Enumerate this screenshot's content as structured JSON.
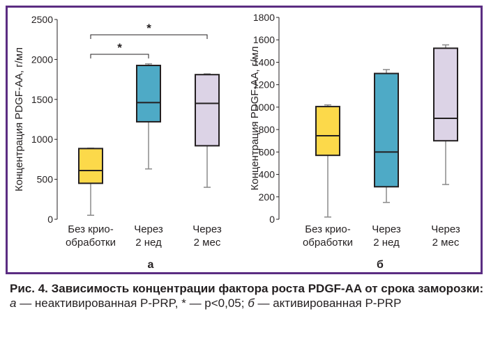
{
  "chart_data": [
    {
      "type": "boxplot",
      "panel_label": "а",
      "ylabel": "Концентрация PDGF-AA, г/мл",
      "ylim": [
        0,
        2500
      ],
      "yticks": [
        0,
        500,
        1000,
        1500,
        2000,
        2500
      ],
      "categories": [
        {
          "lines": [
            "Без крио-",
            "обработки"
          ]
        },
        {
          "lines": [
            "Через",
            "2 нед"
          ]
        },
        {
          "lines": [
            "Через",
            "2 мес"
          ]
        }
      ],
      "boxes": [
        {
          "min": 50,
          "q1": 450,
          "median": 610,
          "q3": 885,
          "max": 890,
          "color": "#fcd94a"
        },
        {
          "min": 630,
          "q1": 1220,
          "median": 1460,
          "q3": 1925,
          "max": 1945,
          "color": "#4eaac6"
        },
        {
          "min": 400,
          "q1": 920,
          "median": 1450,
          "q3": 1810,
          "max": 1820,
          "color": "#dcd3e6"
        }
      ],
      "significance": [
        {
          "from": 0,
          "to": 1,
          "label": "*"
        },
        {
          "from": 0,
          "to": 2,
          "label": "*"
        }
      ]
    },
    {
      "type": "boxplot",
      "panel_label": "б",
      "ylabel": "Концентрация PDGF-AA, г/мл",
      "ylim": [
        0,
        1800
      ],
      "yticks": [
        0,
        200,
        400,
        600,
        800,
        1000,
        1200,
        1400,
        1600,
        1800
      ],
      "categories": [
        {
          "lines": [
            "Без крио-",
            "обработки"
          ]
        },
        {
          "lines": [
            "Через",
            "2 нед"
          ]
        },
        {
          "lines": [
            "Через",
            "2 мес"
          ]
        }
      ],
      "boxes": [
        {
          "min": 20,
          "q1": 570,
          "median": 745,
          "q3": 1005,
          "max": 1020,
          "color": "#fcd94a"
        },
        {
          "min": 150,
          "q1": 290,
          "median": 600,
          "q3": 1300,
          "max": 1335,
          "color": "#4eaac6"
        },
        {
          "min": 310,
          "q1": 700,
          "median": 900,
          "q3": 1525,
          "max": 1555,
          "color": "#dcd3e6"
        }
      ],
      "significance": []
    }
  ],
  "caption": {
    "title": "Рис. 4. Зависимость концентрации фактора роста PDGF-AA от срока заморозки:",
    "a_label": "а",
    "a_text": " — неактивированная P-PRP, * — p<0,05; ",
    "b_label": "б",
    "b_text": " — активированная P-PRP"
  }
}
